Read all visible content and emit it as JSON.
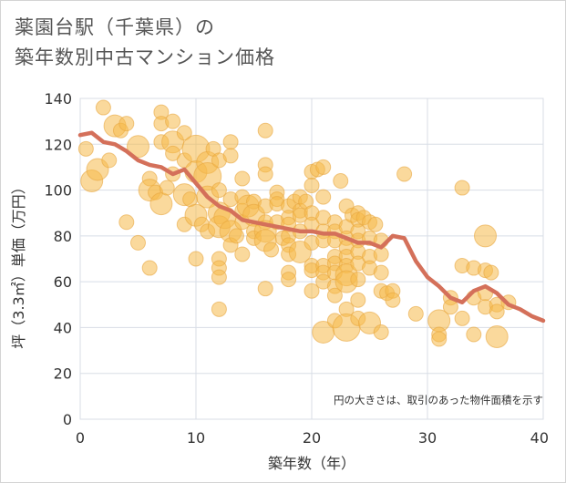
{
  "title_line1": "薬園台駅（千葉県）の",
  "title_line2": "築年数別中古マンション価格",
  "chart_data": {
    "type": "scatter",
    "xlabel": "築年数（年）",
    "ylabel": "坪（3.3㎡）単価（万円）",
    "note": "円の大きさは、取引のあった物件面積を示す",
    "xlim": [
      0,
      40
    ],
    "ylim": [
      0,
      140
    ],
    "x_ticks": [
      "0",
      "10",
      "20",
      "30",
      "40"
    ],
    "y_ticks": [
      "0",
      "20",
      "40",
      "60",
      "80",
      "100",
      "120",
      "140"
    ],
    "grid": true,
    "colors": {
      "bubble": "#f5b94a",
      "trend": "#d4705a"
    },
    "bubbles": [
      [
        0.5,
        118,
        1
      ],
      [
        1,
        104,
        2
      ],
      [
        1.5,
        109,
        2
      ],
      [
        2,
        136,
        1
      ],
      [
        2.5,
        113,
        1
      ],
      [
        3,
        128,
        2
      ],
      [
        3.5,
        126,
        1
      ],
      [
        4,
        129,
        1
      ],
      [
        4,
        86,
        1
      ],
      [
        5,
        119,
        2
      ],
      [
        5,
        77,
        1
      ],
      [
        6,
        105,
        1
      ],
      [
        6,
        66,
        1
      ],
      [
        6,
        100,
        2
      ],
      [
        6.5,
        99,
        1
      ],
      [
        7,
        134,
        1
      ],
      [
        7,
        129,
        1
      ],
      [
        7,
        121,
        1
      ],
      [
        7,
        94,
        2
      ],
      [
        7.5,
        101,
        1
      ],
      [
        8,
        130,
        1
      ],
      [
        8,
        121,
        2
      ],
      [
        8,
        116,
        1
      ],
      [
        8,
        107,
        1
      ],
      [
        9,
        125,
        1
      ],
      [
        9,
        113,
        1
      ],
      [
        9,
        98,
        2
      ],
      [
        9,
        85,
        1
      ],
      [
        9.5,
        96,
        1
      ],
      [
        10,
        118,
        3
      ],
      [
        10,
        108,
        2
      ],
      [
        10,
        89,
        2
      ],
      [
        10,
        70,
        1
      ],
      [
        10.5,
        85,
        1
      ],
      [
        11,
        112,
        2
      ],
      [
        11,
        106,
        3
      ],
      [
        11,
        97,
        2
      ],
      [
        11,
        82,
        1
      ],
      [
        11.5,
        118,
        1
      ],
      [
        12,
        113,
        1
      ],
      [
        12,
        100,
        1
      ],
      [
        12,
        90,
        2
      ],
      [
        12,
        84,
        2
      ],
      [
        12,
        70,
        1
      ],
      [
        12,
        66,
        1
      ],
      [
        12,
        62,
        1
      ],
      [
        12,
        48,
        1
      ],
      [
        12.5,
        88,
        2
      ],
      [
        13,
        121,
        1
      ],
      [
        13,
        115,
        1
      ],
      [
        13,
        96,
        1
      ],
      [
        13,
        82,
        2
      ],
      [
        13,
        76,
        1
      ],
      [
        13.5,
        80,
        1
      ],
      [
        14,
        105,
        1
      ],
      [
        14,
        97,
        1
      ],
      [
        14,
        91,
        1
      ],
      [
        14,
        86,
        1
      ],
      [
        14,
        72,
        1
      ],
      [
        14.5,
        93,
        2
      ],
      [
        15,
        95,
        1
      ],
      [
        15,
        89,
        2
      ],
      [
        15,
        82,
        1
      ],
      [
        15,
        79,
        1
      ],
      [
        16,
        126,
        1
      ],
      [
        16,
        111,
        1
      ],
      [
        16,
        107,
        1
      ],
      [
        16,
        93,
        1
      ],
      [
        16,
        86,
        1
      ],
      [
        16,
        82,
        2
      ],
      [
        16,
        78,
        2
      ],
      [
        16,
        57,
        1
      ],
      [
        16.5,
        74,
        1
      ],
      [
        17,
        99,
        1
      ],
      [
        17,
        96,
        1
      ],
      [
        17,
        94,
        1
      ],
      [
        17,
        86,
        1
      ],
      [
        17.5,
        79,
        1
      ],
      [
        18,
        93,
        1
      ],
      [
        18,
        88,
        1
      ],
      [
        18,
        85,
        1
      ],
      [
        18,
        80,
        1
      ],
      [
        18,
        76,
        1
      ],
      [
        18,
        72,
        1
      ],
      [
        18,
        64,
        1
      ],
      [
        18,
        61,
        1
      ],
      [
        18.5,
        95,
        1
      ],
      [
        19,
        97,
        1
      ],
      [
        19,
        91,
        1
      ],
      [
        19,
        89,
        1
      ],
      [
        19,
        82,
        1
      ],
      [
        19,
        73,
        2
      ],
      [
        19.5,
        95,
        1
      ],
      [
        20,
        108,
        1
      ],
      [
        20,
        102,
        1
      ],
      [
        20,
        90,
        1
      ],
      [
        20,
        85,
        1
      ],
      [
        20,
        77,
        1
      ],
      [
        20,
        67,
        1
      ],
      [
        20,
        65,
        1
      ],
      [
        20,
        56,
        1
      ],
      [
        20.5,
        109,
        1
      ],
      [
        21,
        110,
        1
      ],
      [
        21,
        97,
        1
      ],
      [
        21,
        88,
        1
      ],
      [
        21,
        82,
        1
      ],
      [
        21,
        78,
        1
      ],
      [
        21,
        67,
        1
      ],
      [
        21,
        64,
        1
      ],
      [
        21,
        60,
        1
      ],
      [
        21,
        38,
        2
      ],
      [
        22,
        86,
        1
      ],
      [
        22,
        82,
        1
      ],
      [
        22,
        78,
        1
      ],
      [
        22,
        71,
        1
      ],
      [
        22,
        68,
        1
      ],
      [
        22,
        64,
        1
      ],
      [
        22,
        58,
        1
      ],
      [
        22,
        54,
        1
      ],
      [
        22,
        43,
        1
      ],
      [
        22.5,
        104,
        1
      ],
      [
        23,
        93,
        1
      ],
      [
        23,
        84,
        1
      ],
      [
        23,
        79,
        1
      ],
      [
        23,
        75,
        1
      ],
      [
        23,
        71,
        1
      ],
      [
        23,
        67,
        1
      ],
      [
        23,
        63,
        2
      ],
      [
        23,
        60,
        2
      ],
      [
        23,
        48,
        1
      ],
      [
        23,
        40,
        3
      ],
      [
        23.5,
        89,
        1
      ],
      [
        24,
        90,
        1
      ],
      [
        24,
        87,
        1
      ],
      [
        24,
        82,
        1
      ],
      [
        24,
        78,
        1
      ],
      [
        24,
        73,
        1
      ],
      [
        24,
        68,
        1
      ],
      [
        24,
        61,
        1
      ],
      [
        24,
        52,
        1
      ],
      [
        24,
        44,
        1
      ],
      [
        24.5,
        88,
        1
      ],
      [
        25,
        86,
        1
      ],
      [
        25,
        79,
        1
      ],
      [
        25,
        71,
        1
      ],
      [
        25,
        66,
        1
      ],
      [
        25,
        42,
        2
      ],
      [
        25.5,
        85,
        1
      ],
      [
        26,
        78,
        1
      ],
      [
        26,
        72,
        1
      ],
      [
        26,
        64,
        1
      ],
      [
        26,
        56,
        1
      ],
      [
        26,
        38,
        1
      ],
      [
        26.5,
        55,
        1
      ],
      [
        27,
        56,
        1
      ],
      [
        27,
        52,
        1
      ],
      [
        28,
        107,
        1
      ],
      [
        29,
        46,
        1
      ],
      [
        31,
        43,
        2
      ],
      [
        31,
        37,
        1
      ],
      [
        31,
        35,
        1
      ],
      [
        32,
        53,
        1
      ],
      [
        32,
        49,
        1
      ],
      [
        33,
        101,
        1
      ],
      [
        33,
        67,
        1
      ],
      [
        33,
        44,
        1
      ],
      [
        34,
        66,
        1
      ],
      [
        34,
        53,
        1
      ],
      [
        34,
        37,
        1
      ],
      [
        35,
        80,
        2
      ],
      [
        35,
        65,
        1
      ],
      [
        35,
        55,
        1
      ],
      [
        35,
        49,
        1
      ],
      [
        35.5,
        64,
        1
      ],
      [
        36,
        50,
        1
      ],
      [
        36,
        47,
        1
      ],
      [
        36,
        36,
        2
      ],
      [
        37,
        51,
        1
      ]
    ],
    "trend": {
      "x": [
        0,
        1,
        2,
        3,
        4,
        5,
        6,
        7,
        8,
        9,
        10,
        11,
        12,
        13,
        14,
        15,
        16,
        17,
        18,
        19,
        20,
        21,
        22,
        23,
        24,
        25,
        26,
        27,
        28,
        29,
        30,
        31,
        32,
        33,
        34,
        35,
        36,
        37,
        38,
        39,
        40
      ],
      "y": [
        124,
        125,
        121,
        120,
        117,
        113,
        111,
        110,
        107,
        109,
        103,
        97,
        93,
        91,
        87,
        86,
        85,
        84,
        83,
        82,
        82,
        81,
        81,
        79,
        77,
        77,
        75,
        80,
        79,
        69,
        62,
        58,
        53,
        51,
        56,
        58,
        55,
        50,
        48,
        45,
        43
      ]
    }
  }
}
